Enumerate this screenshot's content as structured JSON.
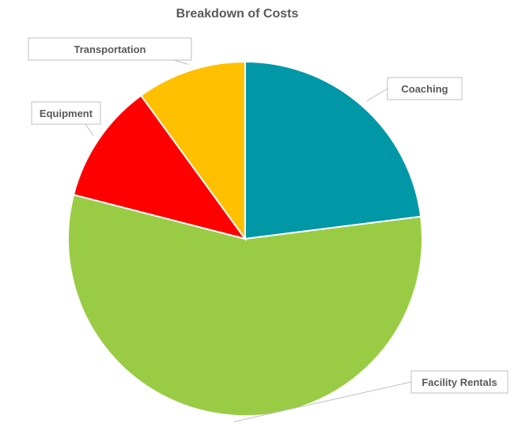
{
  "chart_data": {
    "type": "pie",
    "title": "Breakdown of Costs",
    "start_angle_deg": 0,
    "direction": "clockwise",
    "slices": [
      {
        "label": "Coaching",
        "value": 23,
        "color": "#0097A7"
      },
      {
        "label": "Facility Rentals",
        "value": 56,
        "color": "#99CC44"
      },
      {
        "label": "Equipment",
        "value": 11,
        "color": "#FF0000"
      },
      {
        "label": "Transportation",
        "value": 10,
        "color": "#FFC000"
      }
    ],
    "legend": "none",
    "data_labels": "category-name callouts"
  }
}
